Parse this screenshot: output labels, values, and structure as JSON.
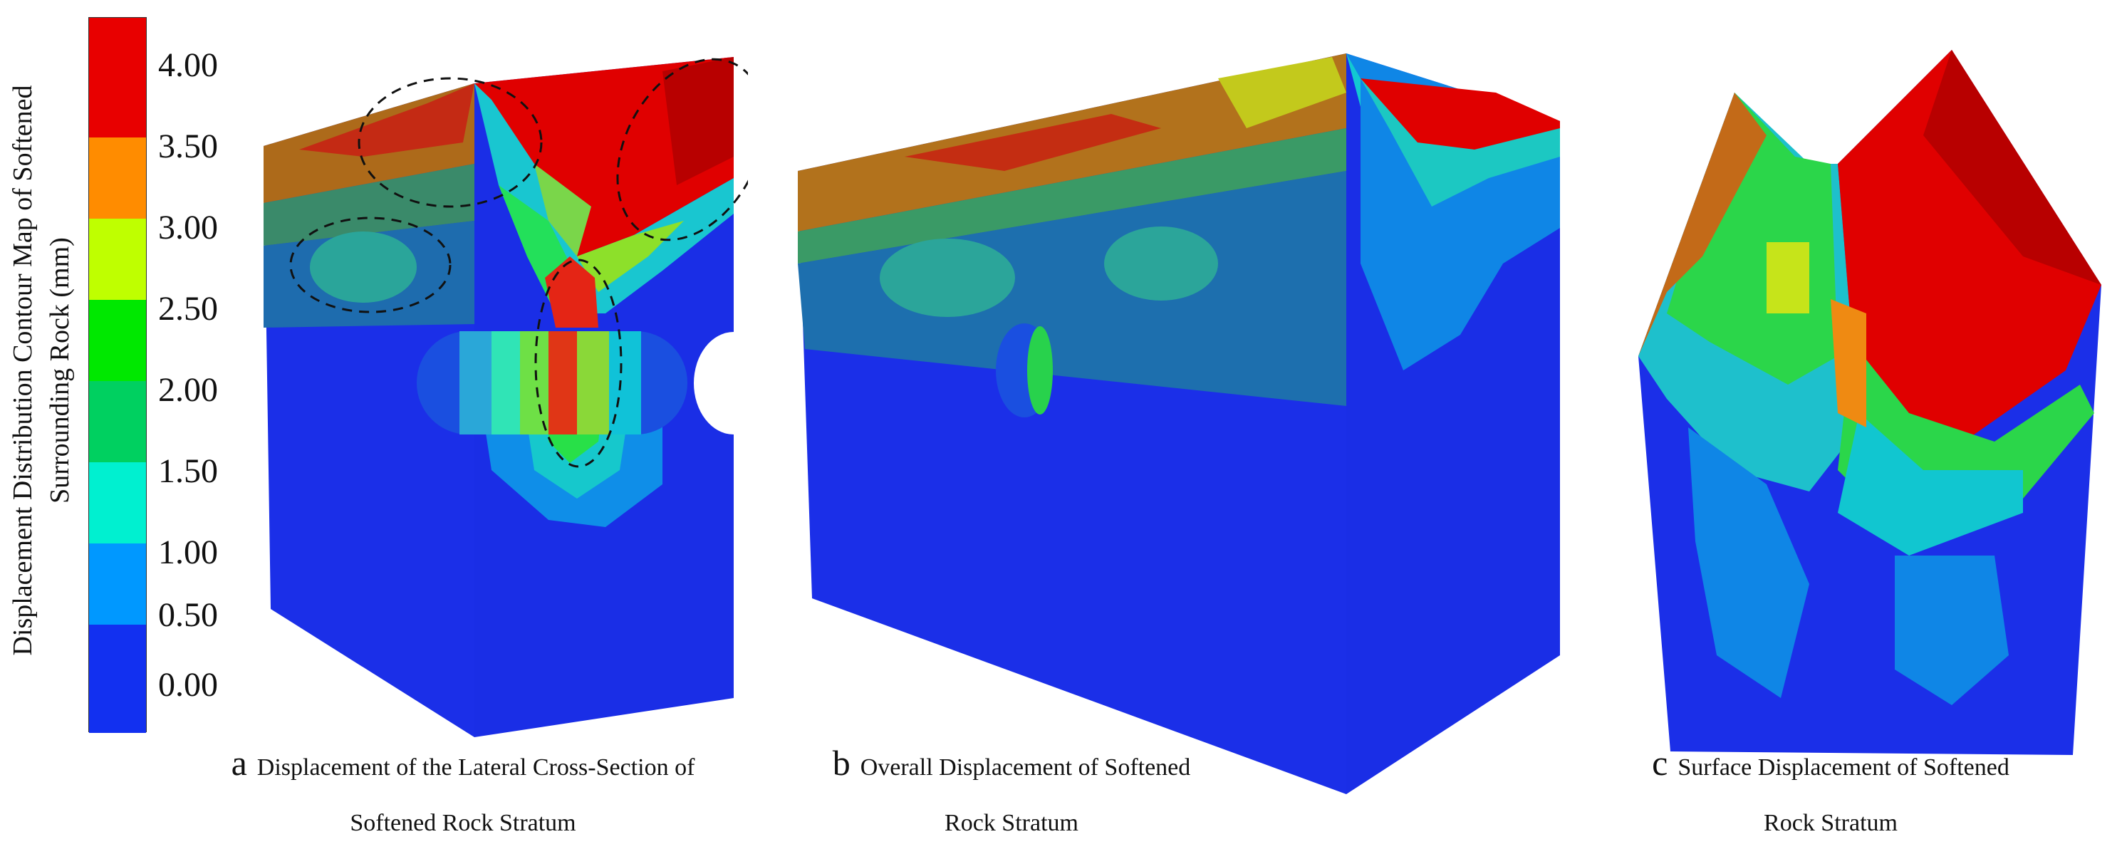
{
  "legend": {
    "title_line1": "Displacement Distribution Contour Map of Softened",
    "title_line2": "Surrounding Rock (mm)",
    "ticks": [
      "4.00",
      "3.50",
      "3.00",
      "2.50",
      "2.00",
      "1.50",
      "1.00",
      "0.50",
      "0.00"
    ],
    "colors": [
      "#e80000",
      "#ff8c00",
      "#bfff00",
      "#00e800",
      "#00d060",
      "#00f0d0",
      "#0098ff",
      "#1230f0"
    ]
  },
  "captions": {
    "a": {
      "letter": "a",
      "line1": "Displacement of the Lateral Cross-Section of",
      "line2": "Softened Rock Stratum"
    },
    "b": {
      "letter": "b",
      "line1": "Overall Displacement of Softened",
      "line2": "Rock Stratum"
    },
    "c": {
      "letter": "c",
      "line1": "Surface Displacement of Softened",
      "line2": "Rock Stratum"
    }
  }
}
